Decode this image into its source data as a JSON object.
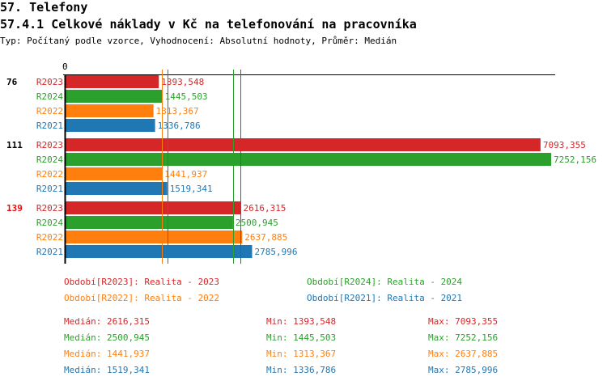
{
  "header": {
    "title": "57. Telefony",
    "subtitle": "57.4.1 Celkové náklady v Kč na telefonování na pracovníka",
    "info": "Typ: Počítaný podle vzorce, Vyhodnocení: Absolutní hodnoty, Průměr: Medián"
  },
  "chart_data": {
    "type": "bar",
    "orientation": "horizontal",
    "xlim": [
      0,
      7252.156
    ],
    "x_tick_labels": [
      "0"
    ],
    "groups": [
      {
        "label": "76",
        "highlight": false,
        "bars": [
          {
            "series": "R2023",
            "value": 1393.548,
            "label": "1393,548"
          },
          {
            "series": "R2024",
            "value": 1445.503,
            "label": "1445,503"
          },
          {
            "series": "R2022",
            "value": 1313.367,
            "label": "1313,367"
          },
          {
            "series": "R2021",
            "value": 1336.786,
            "label": "1336,786"
          }
        ]
      },
      {
        "label": "111",
        "highlight": false,
        "bars": [
          {
            "series": "R2023",
            "value": 7093.355,
            "label": "7093,355"
          },
          {
            "series": "R2024",
            "value": 7252.156,
            "label": "7252,156"
          },
          {
            "series": "R2022",
            "value": 1441.937,
            "label": "1441,937"
          },
          {
            "series": "R2021",
            "value": 1519.341,
            "label": "1519,341"
          }
        ]
      },
      {
        "label": "139",
        "highlight": true,
        "bars": [
          {
            "series": "R2023",
            "value": 2616.315,
            "label": "2616,315"
          },
          {
            "series": "R2024",
            "value": 2500.945,
            "label": "2500,945"
          },
          {
            "series": "R2022",
            "value": 2637.885,
            "label": "2637,885"
          },
          {
            "series": "R2021",
            "value": 2785.996,
            "label": "2785,996"
          }
        ]
      }
    ],
    "colors": {
      "R2023": "#d62728",
      "R2024": "#2ca02c",
      "R2022": "#ff7f0e",
      "R2021": "#1f77b4",
      "highlight": "#ff0000"
    },
    "medians": {
      "R2023": 2616.315,
      "R2024": 2500.945,
      "R2022": 1441.937,
      "R2021": 1519.341
    },
    "legend": [
      {
        "series": "R2023",
        "text": "Období[R2023]: Realita - 2023"
      },
      {
        "series": "R2024",
        "text": "Období[R2024]: Realita - 2024"
      },
      {
        "series": "R2022",
        "text": "Období[R2022]: Realita - 2022"
      },
      {
        "series": "R2021",
        "text": "Období[R2021]: Realita - 2021"
      }
    ],
    "stats": [
      {
        "series": "R2023",
        "median": "Medián: 2616,315",
        "min": "Min: 1393,548",
        "max": "Max: 7093,355"
      },
      {
        "series": "R2024",
        "median": "Medián: 2500,945",
        "min": "Min: 1445,503",
        "max": "Max: 7252,156"
      },
      {
        "series": "R2022",
        "median": "Medián: 1441,937",
        "min": "Min: 1313,367",
        "max": "Max: 2637,885"
      },
      {
        "series": "R2021",
        "median": "Medián: 1519,341",
        "min": "Min: 1336,786",
        "max": "Max: 2785,996"
      }
    ]
  }
}
